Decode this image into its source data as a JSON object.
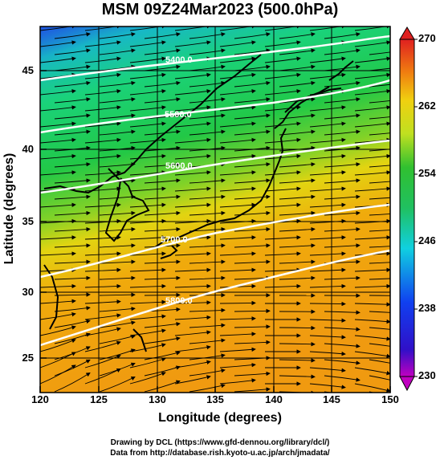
{
  "title": "MSM 09Z24Mar2023 (500.0hPa)",
  "xlabel": "Longitude (degrees)",
  "ylabel": "Latitude  (degrees)",
  "credits": [
    "Drawing by DCL (https://www.gfd-dennou.org/library/dcl/)",
    "Data from http://database.rish.kyoto-u.ac.jp/arch/jmadata/"
  ],
  "x_ticks": [
    "120",
    "125",
    "130",
    "135",
    "140",
    "145",
    "150"
  ],
  "y_ticks": [
    "25",
    "30",
    "35",
    "40",
    "45"
  ],
  "colorbar": {
    "ticks": [
      "230",
      "238",
      "246",
      "254",
      "262",
      "270"
    ],
    "min": 230,
    "max": 270
  },
  "contour_labels": [
    "5400.0",
    "5500.0",
    "5600.0",
    "5700.0",
    "5800.0"
  ],
  "chart_data": {
    "type": "heatmap",
    "title": "MSM 09Z24Mar2023 (500.0hPa)",
    "xlabel": "Longitude (degrees)",
    "ylabel": "Latitude  (degrees)",
    "xlim": [
      120,
      150
    ],
    "ylim": [
      22.4,
      47.6
    ],
    "colorbar_range": [
      230,
      270
    ],
    "contour_levels": [
      5400,
      5500,
      5600,
      5700,
      5800
    ],
    "grid": true
  }
}
